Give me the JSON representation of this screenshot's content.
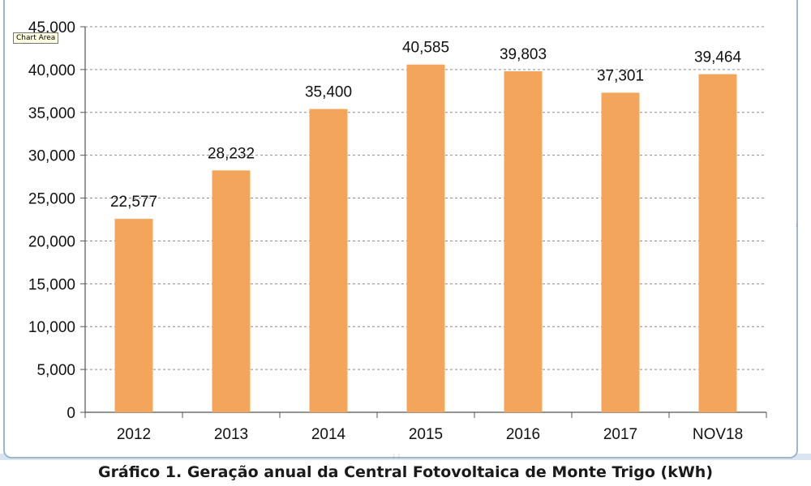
{
  "tooltip": "Chart Area",
  "caption": "Gráfico 1. Geração anual da Central Fotovoltaica de Monte Trigo (kWh)",
  "colors": {
    "bar": "#f4a55c",
    "grid": "#8c8c8c",
    "axis": "#555555",
    "frame": "#9eb6ce"
  },
  "chart_data": {
    "type": "bar",
    "categories": [
      "2012",
      "2013",
      "2014",
      "2015",
      "2016",
      "2017",
      "NOV18"
    ],
    "values": [
      22577,
      28232,
      35400,
      40585,
      39803,
      37301,
      39464
    ],
    "data_labels": [
      "22,577",
      "28,232",
      "35,400",
      "40,585",
      "39,803",
      "37,301",
      "39,464"
    ],
    "y_ticks": [
      0,
      5000,
      10000,
      15000,
      20000,
      25000,
      30000,
      35000,
      40000,
      45000
    ],
    "y_tick_labels": [
      "0",
      "5,000",
      "10,000",
      "15,000",
      "20,000",
      "25,000",
      "30,000",
      "35,000",
      "40,000",
      "45,000"
    ],
    "ylim": [
      0,
      45000
    ],
    "grid": true,
    "legend": "none"
  }
}
